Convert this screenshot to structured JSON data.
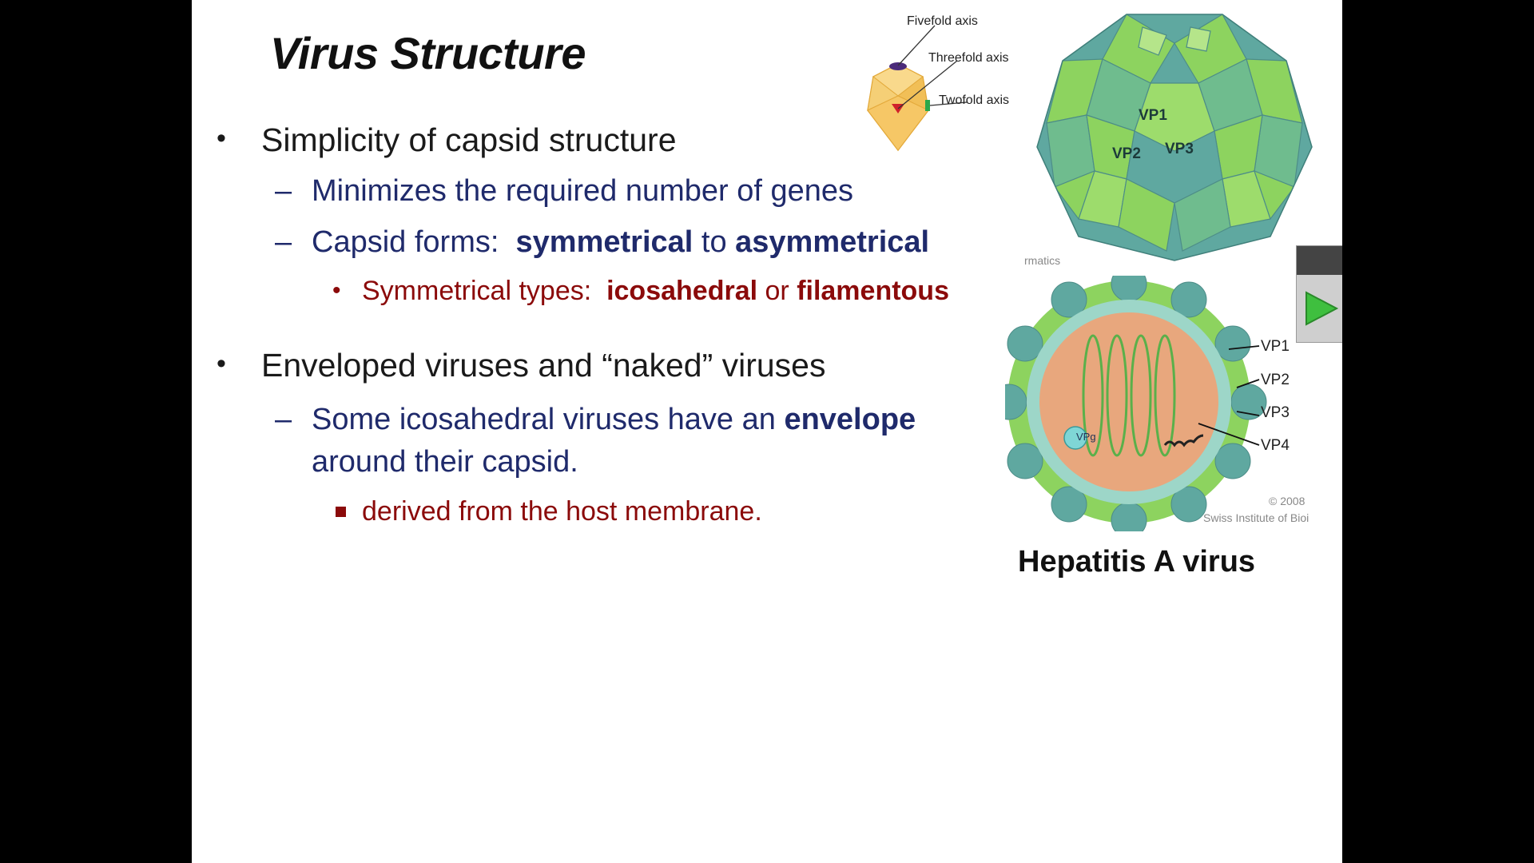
{
  "slide": {
    "title": "Virus Structure",
    "bullets": {
      "b1": {
        "marker": "•",
        "text": "Simplicity of capsid structure"
      },
      "b1a": {
        "marker": "–",
        "text": "Minimizes the required number of genes"
      },
      "b1b": {
        "marker": "–",
        "pre": "Capsid forms:  ",
        "bold1": "symmetrical",
        "mid": " to ",
        "bold2": "asymmetrical"
      },
      "b1b1": {
        "marker": "•",
        "pre": "Symmetrical types:  ",
        "bold1": "icosahedral",
        "mid": " or ",
        "bold2": "filamentous"
      },
      "b2": {
        "marker": "•",
        "text": "Enveloped viruses and “naked” viruses"
      },
      "b2a": {
        "marker": "–",
        "pre": "Some icosahedral viruses have an ",
        "bold1": "envelope",
        "line2": "around their capsid."
      },
      "b2a1": {
        "text": "derived from the host membrane."
      }
    },
    "figure": {
      "axis_labels": {
        "fivefold": "Fivefold axis",
        "threefold": "Threefold axis",
        "twofold": "Twofold axis"
      },
      "capsid_labels": {
        "vp1": "VP1",
        "vp2": "VP2",
        "vp3": "VP3"
      },
      "partial_text": "rmatics",
      "cross_section_labels": {
        "vp1": "VP1",
        "vp2": "VP2",
        "vp3": "VP3",
        "vp4": "VP4",
        "vpg": "VPg"
      },
      "copyright_line1": "© 2008",
      "copyright_line2": "Swiss Institute of Bioi",
      "caption": "Hepatitis A virus"
    },
    "colors": {
      "title": "#111111",
      "level1": "#1a1a1a",
      "level2": "#1f2a6b",
      "level3": "#8b0a0a",
      "capsid_green": "#8dd35f",
      "capsid_teal": "#5fa8a0",
      "core": "#e8a77d",
      "icosa_yellow": "#f7c75a"
    },
    "play_button_icon": "play-icon"
  }
}
